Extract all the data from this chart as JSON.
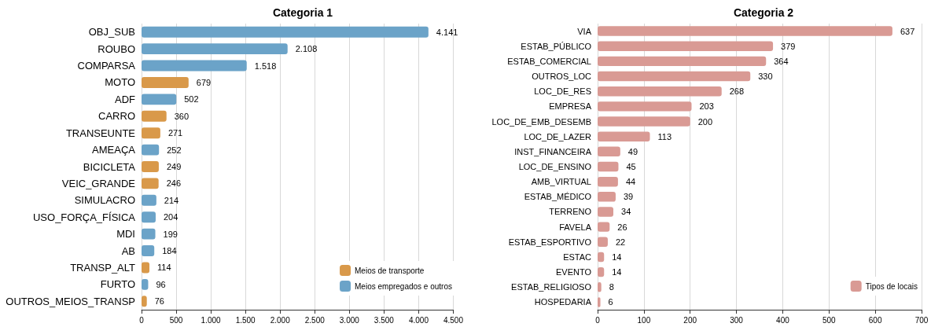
{
  "chart_data": [
    {
      "type": "bar",
      "orientation": "horizontal",
      "title": "Categoria 1",
      "categories": [
        "OBJ_SUB",
        "ROUBO",
        "COMPARSA",
        "MOTO",
        "ADF",
        "CARRO",
        "TRANSEUNTE",
        "AMEAÇA",
        "BICICLETA",
        "VEIC_GRANDE",
        "SIMULACRO",
        "USO_FORÇA_FÍSICA",
        "MDI",
        "AB",
        "TRANSP_ALT",
        "FURTO",
        "OUTROS_MEIOS_TRANSP"
      ],
      "series": [
        {
          "name": "Meios de transporte",
          "color": "#d9994a",
          "values": [
            null,
            null,
            null,
            679,
            null,
            360,
            271,
            null,
            249,
            246,
            null,
            null,
            null,
            null,
            114,
            null,
            76
          ],
          "value_labels": [
            null,
            null,
            null,
            "679",
            null,
            "360",
            "271",
            null,
            "249",
            "246",
            null,
            null,
            null,
            null,
            "114",
            null,
            "76"
          ]
        },
        {
          "name": "Meios empregados e outros",
          "color": "#6ba3c8",
          "values": [
            4141,
            2108,
            1518,
            null,
            502,
            null,
            null,
            252,
            null,
            null,
            214,
            204,
            199,
            184,
            null,
            96,
            null
          ],
          "value_labels": [
            "4.141",
            "2.108",
            "1.518",
            null,
            "502",
            null,
            null,
            "252",
            null,
            null,
            "214",
            "204",
            "199",
            "184",
            null,
            "96",
            null
          ]
        }
      ],
      "xlim": [
        0,
        4500
      ],
      "xticks": [
        0,
        500,
        {
          "value": 1000,
          "label": "1.000"
        },
        {
          "value": 1500,
          "label": "1.500"
        },
        {
          "value": 2000,
          "label": "2.000"
        },
        {
          "value": 2500,
          "label": "2.500"
        },
        {
          "value": 3000,
          "label": "3.000"
        },
        {
          "value": 3500,
          "label": "3.500"
        },
        {
          "value": 4000,
          "label": "4.000"
        },
        {
          "value": 4500,
          "label": "4.500"
        }
      ],
      "grid": "x",
      "legend": "bottom right"
    },
    {
      "type": "bar",
      "orientation": "horizontal",
      "title": "Categoria 2",
      "categories": [
        "VIA",
        "ESTAB_PÚBLICO",
        "ESTAB_COMERCIAL",
        "OUTROS_LOC",
        "LOC_DE_RES",
        "EMPRESA",
        "LOC_DE_EMB_DESEMB",
        "LOC_DE_LAZER",
        "INST_FINANCEIRA",
        "LOC_DE_ENSINO",
        "AMB_VIRTUAL",
        "ESTAB_MÉDICO",
        "TERRENO",
        "FAVELA",
        "ESTAB_ESPORTIVO",
        "ESTAC",
        "EVENTO",
        "ESTAB_RELIGIOSO",
        "HOSPEDARIA"
      ],
      "series": [
        {
          "name": "Tipos de locais",
          "color": "#d99a94",
          "values": [
            637,
            379,
            364,
            330,
            268,
            203,
            200,
            113,
            49,
            45,
            44,
            39,
            34,
            26,
            22,
            14,
            14,
            8,
            6
          ]
        }
      ],
      "xlim": [
        0,
        700
      ],
      "xticks": [
        0,
        100,
        200,
        300,
        400,
        500,
        600,
        700
      ],
      "grid": "x",
      "legend": "bottom right",
      "data_labels": true
    }
  ]
}
